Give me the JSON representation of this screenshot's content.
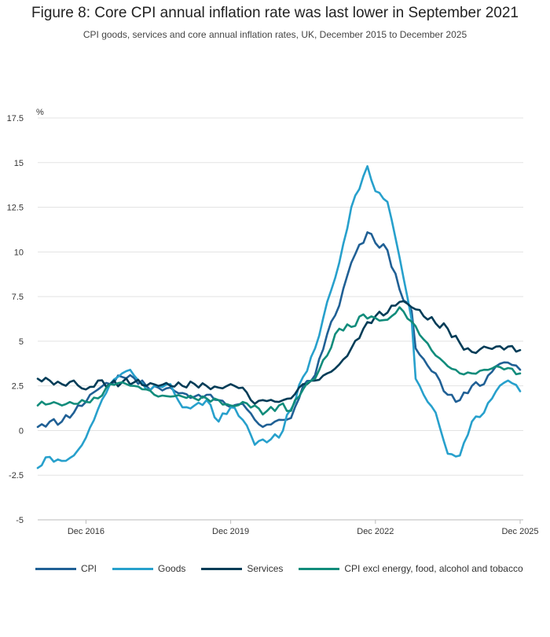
{
  "title": "Figure 8: Core CPI annual inflation rate was last lower in September 2021",
  "subtitle": "CPI goods, services and core annual inflation rates, UK, December 2015 to December 2025",
  "chart_data": {
    "type": "line",
    "ylabel": "%",
    "ylim": [
      -5,
      17.5
    ],
    "yticks": [
      -5,
      -2.5,
      0,
      2.5,
      5,
      7.5,
      10,
      12.5,
      15,
      17.5
    ],
    "ytick_labels": [
      "-5",
      "-2.5",
      "0",
      "2.5",
      "5",
      "7.5",
      "10",
      "12.5",
      "15",
      "17.5"
    ],
    "x_start": "Dec 2015",
    "x_end": "Dec 2025",
    "xticks": [
      "Dec 2016",
      "Dec 2019",
      "Dec 2022",
      "Dec 2025"
    ],
    "grid": "horizontal",
    "legend_position": "bottom",
    "series": [
      {
        "name": "CPI",
        "color": "#206095",
        "keypoints": [
          [
            "Dec 2015",
            0.2
          ],
          [
            "Mar 2016",
            0.5
          ],
          [
            "Jun 2016",
            0.5
          ],
          [
            "Sep 2016",
            1.0
          ],
          [
            "Dec 2016",
            1.6
          ],
          [
            "Mar 2017",
            2.3
          ],
          [
            "Jun 2017",
            2.6
          ],
          [
            "Sep 2017",
            3.0
          ],
          [
            "Nov 2017",
            3.1
          ],
          [
            "Mar 2018",
            2.5
          ],
          [
            "Jun 2018",
            2.4
          ],
          [
            "Sep 2018",
            2.4
          ],
          [
            "Dec 2018",
            2.1
          ],
          [
            "Mar 2019",
            1.9
          ],
          [
            "Jun 2019",
            2.0
          ],
          [
            "Sep 2019",
            1.7
          ],
          [
            "Dec 2019",
            1.3
          ],
          [
            "Mar 2020",
            1.5
          ],
          [
            "Jun 2020",
            0.6
          ],
          [
            "Aug 2020",
            0.2
          ],
          [
            "Dec 2020",
            0.6
          ],
          [
            "Mar 2021",
            0.7
          ],
          [
            "Jun 2021",
            2.5
          ],
          [
            "Sep 2021",
            3.1
          ],
          [
            "Dec 2021",
            5.4
          ],
          [
            "Mar 2022",
            7.0
          ],
          [
            "Jun 2022",
            9.4
          ],
          [
            "Oct 2022",
            11.1
          ],
          [
            "Dec 2022",
            10.5
          ],
          [
            "Mar 2023",
            10.1
          ],
          [
            "Jun 2023",
            7.9
          ],
          [
            "Sep 2023",
            6.7
          ],
          [
            "Oct 2023",
            4.6
          ],
          [
            "Dec 2023",
            4.0
          ],
          [
            "Mar 2024",
            3.2
          ],
          [
            "Jun 2024",
            2.0
          ],
          [
            "Sep 2024",
            1.7
          ],
          [
            "Dec 2024",
            2.5
          ],
          [
            "Mar 2025",
            2.6
          ],
          [
            "Jun 2025",
            3.6
          ],
          [
            "Sep 2025",
            3.8
          ],
          [
            "Dec 2025",
            3.4
          ]
        ]
      },
      {
        "name": "Goods",
        "color": "#27a0cc",
        "keypoints": [
          [
            "Dec 2015",
            -2.1
          ],
          [
            "Feb 2016",
            -1.5
          ],
          [
            "Jun 2016",
            -1.7
          ],
          [
            "Sep 2016",
            -1.4
          ],
          [
            "Dec 2016",
            -0.4
          ],
          [
            "Mar 2017",
            1.2
          ],
          [
            "Jun 2017",
            2.6
          ],
          [
            "Sep 2017",
            3.2
          ],
          [
            "Nov 2017",
            3.4
          ],
          [
            "Mar 2018",
            2.3
          ],
          [
            "Jun 2018",
            2.5
          ],
          [
            "Sep 2018",
            2.6
          ],
          [
            "Dec 2018",
            1.3
          ],
          [
            "Mar 2019",
            1.4
          ],
          [
            "Jun 2019",
            1.7
          ],
          [
            "Sep 2019",
            0.5
          ],
          [
            "Dec 2019",
            1.3
          ],
          [
            "Mar 2020",
            0.6
          ],
          [
            "Jun 2020",
            -0.8
          ],
          [
            "Aug 2020",
            -0.5
          ],
          [
            "Dec 2020",
            -0.4
          ],
          [
            "Mar 2021",
            1.2
          ],
          [
            "Jun 2021",
            3.0
          ],
          [
            "Sep 2021",
            4.6
          ],
          [
            "Dec 2021",
            7.2
          ],
          [
            "Mar 2022",
            9.4
          ],
          [
            "Jun 2022",
            12.5
          ],
          [
            "Oct 2022",
            14.8
          ],
          [
            "Dec 2022",
            13.4
          ],
          [
            "Mar 2023",
            12.8
          ],
          [
            "Jun 2023",
            9.7
          ],
          [
            "Sep 2023",
            6.2
          ],
          [
            "Oct 2023",
            2.9
          ],
          [
            "Dec 2023",
            2.0
          ],
          [
            "Mar 2024",
            1.0
          ],
          [
            "Jun 2024",
            -1.3
          ],
          [
            "Sep 2024",
            -1.4
          ],
          [
            "Dec 2024",
            0.5
          ],
          [
            "Mar 2025",
            1.0
          ],
          [
            "Jun 2025",
            2.2
          ],
          [
            "Sep 2025",
            2.8
          ],
          [
            "Dec 2025",
            2.2
          ]
        ]
      },
      {
        "name": "Services",
        "color": "#003c57",
        "keypoints": [
          [
            "Dec 2015",
            2.9
          ],
          [
            "Mar 2016",
            2.8
          ],
          [
            "Jun 2016",
            2.6
          ],
          [
            "Sep 2016",
            2.8
          ],
          [
            "Dec 2016",
            2.3
          ],
          [
            "Mar 2017",
            2.8
          ],
          [
            "Jun 2017",
            2.6
          ],
          [
            "Sep 2017",
            2.7
          ],
          [
            "Dec 2017",
            2.7
          ],
          [
            "Mar 2018",
            2.5
          ],
          [
            "Jun 2018",
            2.5
          ],
          [
            "Sep 2018",
            2.5
          ],
          [
            "Dec 2018",
            2.5
          ],
          [
            "Mar 2019",
            2.6
          ],
          [
            "Jun 2019",
            2.5
          ],
          [
            "Sep 2019",
            2.4
          ],
          [
            "Dec 2019",
            2.6
          ],
          [
            "Mar 2020",
            2.4
          ],
          [
            "Jun 2020",
            1.5
          ],
          [
            "Aug 2020",
            1.7
          ],
          [
            "Dec 2020",
            1.6
          ],
          [
            "Mar 2021",
            1.8
          ],
          [
            "Jun 2021",
            2.6
          ],
          [
            "Sep 2021",
            2.8
          ],
          [
            "Dec 2021",
            3.2
          ],
          [
            "Mar 2022",
            3.7
          ],
          [
            "Jun 2022",
            4.6
          ],
          [
            "Sep 2022",
            5.7
          ],
          [
            "Dec 2022",
            6.4
          ],
          [
            "Mar 2023",
            6.6
          ],
          [
            "Jun 2023",
            7.2
          ],
          [
            "Sep 2023",
            6.9
          ],
          [
            "Dec 2023",
            6.4
          ],
          [
            "Mar 2024",
            6.0
          ],
          [
            "Jun 2024",
            5.7
          ],
          [
            "Sep 2024",
            4.9
          ],
          [
            "Dec 2024",
            4.4
          ],
          [
            "Mar 2025",
            4.7
          ],
          [
            "Jun 2025",
            4.7
          ],
          [
            "Sep 2025",
            4.7
          ],
          [
            "Dec 2025",
            4.5
          ]
        ]
      },
      {
        "name": "CPI excl energy, food, alcohol and tobacco",
        "color": "#118c7b",
        "keypoints": [
          [
            "Dec 2015",
            1.4
          ],
          [
            "Mar 2016",
            1.5
          ],
          [
            "Jun 2016",
            1.4
          ],
          [
            "Sep 2016",
            1.5
          ],
          [
            "Dec 2016",
            1.6
          ],
          [
            "Mar 2017",
            1.8
          ],
          [
            "Jun 2017",
            2.6
          ],
          [
            "Sep 2017",
            2.7
          ],
          [
            "Dec 2017",
            2.5
          ],
          [
            "Mar 2018",
            2.3
          ],
          [
            "Jun 2018",
            1.9
          ],
          [
            "Sep 2018",
            1.9
          ],
          [
            "Dec 2018",
            1.9
          ],
          [
            "Mar 2019",
            1.8
          ],
          [
            "Jun 2019",
            1.8
          ],
          [
            "Sep 2019",
            1.7
          ],
          [
            "Dec 2019",
            1.4
          ],
          [
            "Mar 2020",
            1.6
          ],
          [
            "Jun 2020",
            1.4
          ],
          [
            "Aug 2020",
            0.9
          ],
          [
            "Dec 2020",
            1.4
          ],
          [
            "Mar 2021",
            1.1
          ],
          [
            "Jun 2021",
            2.3
          ],
          [
            "Sep 2021",
            2.9
          ],
          [
            "Dec 2021",
            4.2
          ],
          [
            "Mar 2022",
            5.7
          ],
          [
            "Jun 2022",
            5.8
          ],
          [
            "Sep 2022",
            6.5
          ],
          [
            "Dec 2022",
            6.3
          ],
          [
            "Mar 2023",
            6.2
          ],
          [
            "Jun 2023",
            6.9
          ],
          [
            "Sep 2023",
            6.1
          ],
          [
            "Dec 2023",
            5.1
          ],
          [
            "Mar 2024",
            4.2
          ],
          [
            "Jun 2024",
            3.6
          ],
          [
            "Sep 2024",
            3.2
          ],
          [
            "Dec 2024",
            3.2
          ],
          [
            "Mar 2025",
            3.4
          ],
          [
            "Jun 2025",
            3.6
          ],
          [
            "Sep 2025",
            3.5
          ],
          [
            "Dec 2025",
            3.2
          ]
        ]
      }
    ]
  }
}
